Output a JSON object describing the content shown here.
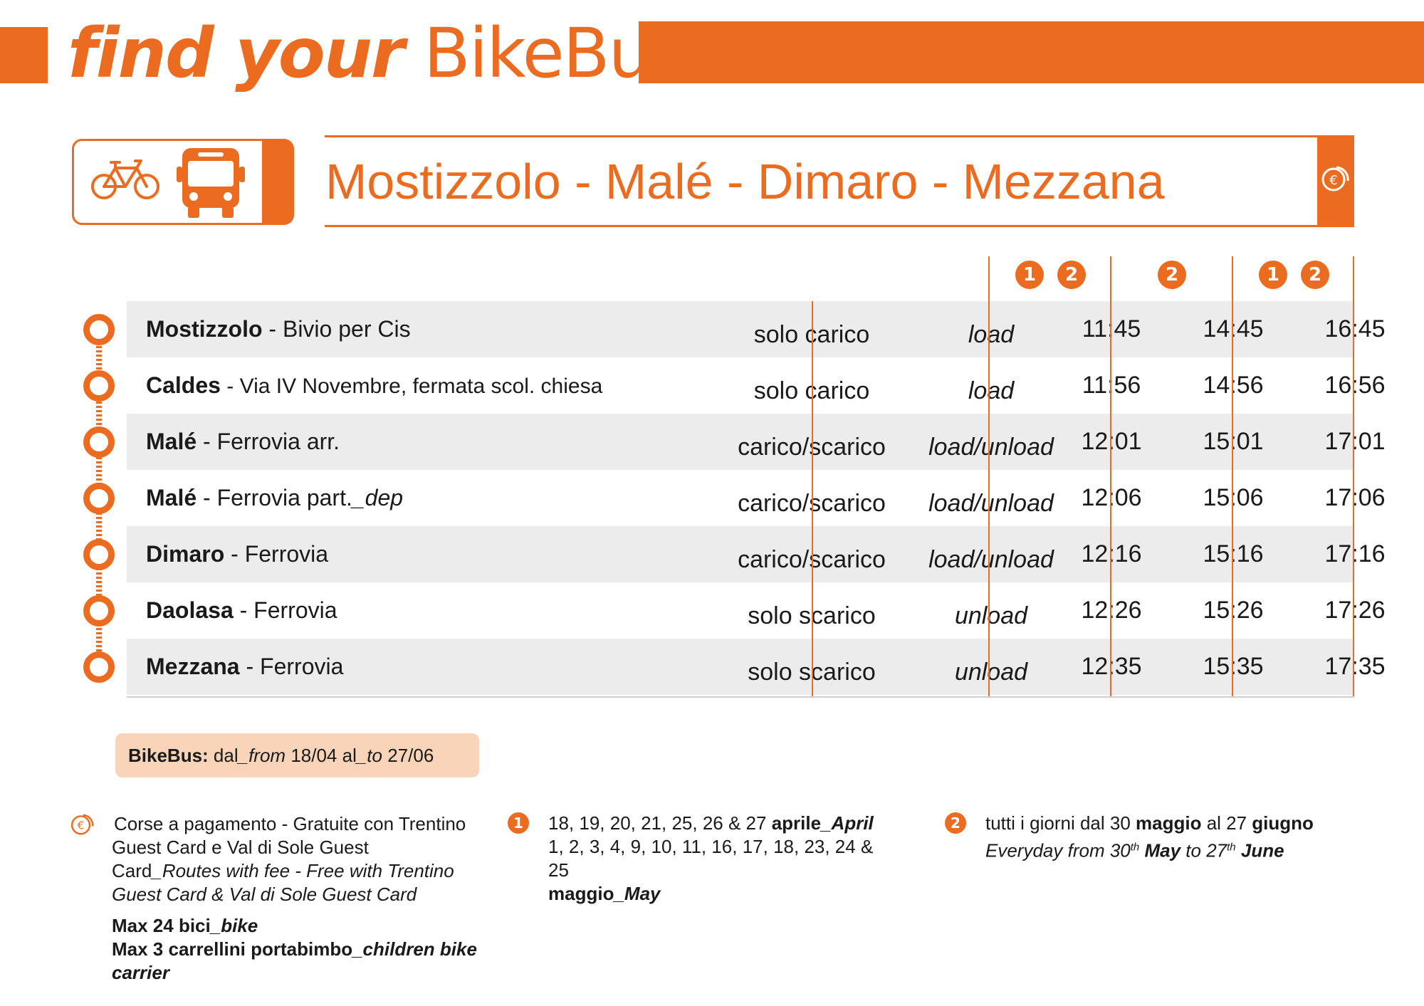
{
  "header": {
    "title_bold": "find your",
    "title_light": "BikeBus"
  },
  "route": {
    "title": "Mostizzolo - Malé - Dimaro - Mezzana"
  },
  "icons": {
    "bike": "bicycle-icon",
    "bus": "bus-icon",
    "fee": "euro-coins-icon"
  },
  "colors": {
    "accent": "#eb6c21",
    "row_shade": "#ececec",
    "badge": "#f9d4b8"
  },
  "columns": [
    {
      "markers": [
        "1",
        "2"
      ]
    },
    {
      "markers": [
        "2"
      ]
    },
    {
      "markers": [
        "1",
        "2"
      ]
    }
  ],
  "stops": [
    {
      "name": "Mostizzolo",
      "detail": " - Bivio per Cis",
      "it": "solo carico",
      "en": "load",
      "times": [
        "11:45",
        "14:45",
        "16:45"
      ]
    },
    {
      "name": "Caldes",
      "detail": " - Via IV Novembre, fermata scol. chiesa",
      "it": "solo carico",
      "en": "load",
      "times": [
        "11:56",
        "14:56",
        "16:56"
      ]
    },
    {
      "name": "Malé",
      "detail": " - Ferrovia arr.",
      "it": "carico/scarico",
      "en": "load/unload",
      "times": [
        "12:01",
        "15:01",
        "17:01"
      ]
    },
    {
      "name": "Malé",
      "detail": " - Ferrovia part.",
      "detail_en": "_dep",
      "it": "carico/scarico",
      "en": "load/unload",
      "times": [
        "12:06",
        "15:06",
        "17:06"
      ]
    },
    {
      "name": "Dimaro",
      "detail": " - Ferrovia",
      "it": "carico/scarico",
      "en": "load/unload",
      "times": [
        "12:16",
        "15:16",
        "17:16"
      ]
    },
    {
      "name": "Daolasa",
      "detail": " - Ferrovia",
      "it": "solo scarico",
      "en": "unload",
      "times": [
        "12:26",
        "15:26",
        "17:26"
      ]
    },
    {
      "name": "Mezzana",
      "detail": " - Ferrovia",
      "it": "solo scarico",
      "en": "unload",
      "times": [
        "12:35",
        "15:35",
        "17:35"
      ]
    }
  ],
  "validity": {
    "label": "BikeBus:",
    "dal": " dal",
    "from": "_from",
    "start": " 18/04 al",
    "to": "_to",
    "end": " 27/06"
  },
  "notes": {
    "fee_it": "Corse a pagamento - Gratuite con Trentino Guest Card e Val di Sole Guest Card",
    "fee_en": "_Routes with fee - Free with Trentino Guest Card & Val di Sole Guest Card",
    "bikes_it": "Max 24 bici",
    "bikes_en": "_bike",
    "carriers_it": "Max 3 carrellini portabimbo",
    "carriers_en": "_children bike carrier",
    "m1_marker": "1",
    "m1_dates_april": "18, 19, 20, 21, 25, 26 & 27 ",
    "m1_april_it": "aprile",
    "m1_april_en": "_April",
    "m1_dates_may": "1, 2, 3, 4, 9, 10, 11, 16, 17, 18, 23, 24 & 25",
    "m1_may_it": "maggio",
    "m1_may_en": "_May",
    "m2_marker": "2",
    "m2_it_a": "tutti i giorni dal 30 ",
    "m2_it_may": "maggio",
    "m2_it_b": " al 27 ",
    "m2_it_june": "giugno",
    "m2_en_a": "Everyday from 30",
    "m2_en_sup1": "th",
    "m2_en_may": "May",
    "m2_en_b": " to 27",
    "m2_en_sup2": "th",
    "m2_en_june": "June"
  }
}
